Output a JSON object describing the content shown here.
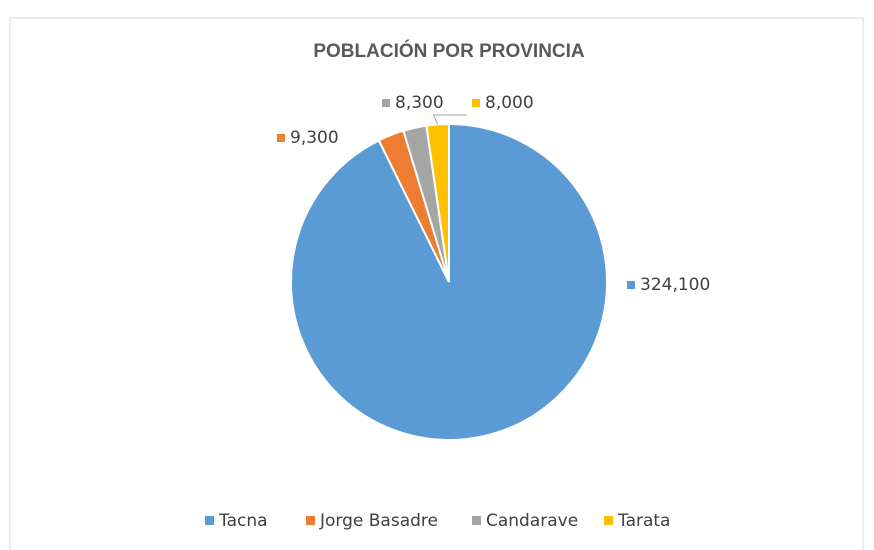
{
  "chart_data": {
    "type": "pie",
    "title": "POBLACIÓN POR PROVINCIA",
    "categories": [
      "Tacna",
      "Jorge Basadre",
      "Candarave",
      "Tarata"
    ],
    "values": [
      324100,
      9300,
      8300,
      8000
    ],
    "value_labels": [
      "324,100",
      "9,300",
      "8,300",
      "8,000"
    ],
    "colors": [
      "#5b9bd5",
      "#ed7d31",
      "#a5a5a5",
      "#ffc000"
    ],
    "legend": "bottom"
  }
}
